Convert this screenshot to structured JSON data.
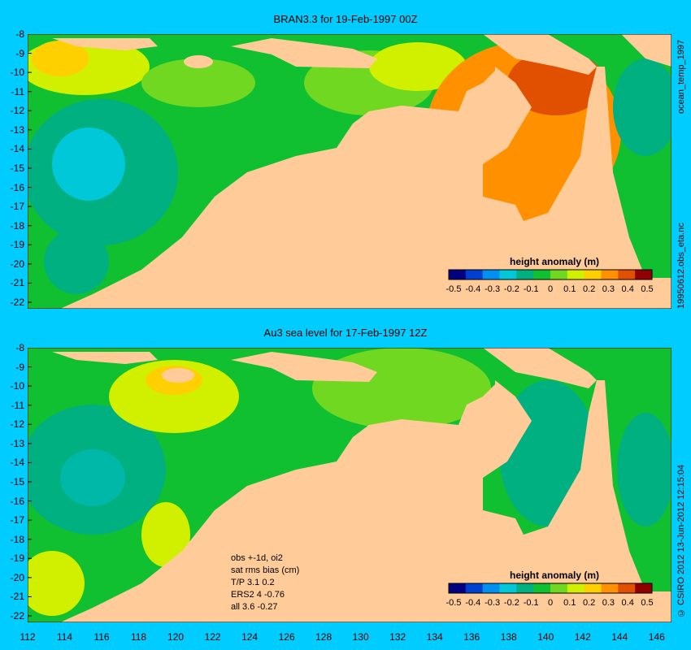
{
  "top": {
    "title": "BRAN3.3 for 19-Feb-1997 00Z",
    "side_top": "ocean_temp_1997",
    "side_bottom": "19950612.obs_eta.nc",
    "colorbar_title": "height anomaly (m)"
  },
  "bottom": {
    "title": "Au3 sea level  for 17-Feb-1997 12Z",
    "side_text": "© CSIRO 2012  13-Jun-2012 12:15:04",
    "colorbar_title": "height anomaly (m)",
    "stats": [
      "obs +-1d, oi2",
      "sat rms bias (cm)",
      "T/P  3.1 0.2",
      "ERS2 4 -0.76",
      "all 3.6 -0.27"
    ]
  },
  "lat_ticks": [
    "-8",
    "-9",
    "-10",
    "-11",
    "-12",
    "-13",
    "-14",
    "-15",
    "-16",
    "-17",
    "-18",
    "-19",
    "-20",
    "-21",
    "-22"
  ],
  "lon_ticks": [
    "112",
    "114",
    "116",
    "118",
    "120",
    "122",
    "124",
    "126",
    "128",
    "130",
    "132",
    "134",
    "136",
    "138",
    "140",
    "142",
    "144",
    "146"
  ],
  "colorbar_ticks": [
    "-0.5",
    "-0.4",
    "-0.3",
    "-0.2",
    "-0.1",
    "0",
    "0.1",
    "0.2",
    "0.3",
    "0.4",
    "0.5"
  ],
  "colors": {
    "background": "#00ccff",
    "land": "#ffcc99",
    "colorbar": [
      "#000080",
      "#0040d0",
      "#0090f0",
      "#00c8d8",
      "#00b080",
      "#10c030",
      "#70d820",
      "#d0f000",
      "#ffd000",
      "#ff9000",
      "#e05000",
      "#900000"
    ]
  }
}
